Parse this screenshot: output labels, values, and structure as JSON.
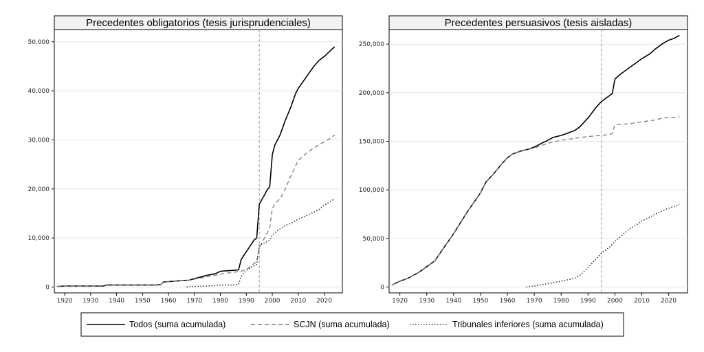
{
  "chart_data": [
    {
      "type": "line",
      "title": "Precedentes obligatorios (tesis jurisprudenciales)",
      "xlabel": "",
      "ylabel": "",
      "xlim": [
        1916,
        2027
      ],
      "ylim": [
        -1200,
        52500
      ],
      "xticks": [
        1920,
        1930,
        1940,
        1950,
        1960,
        1970,
        1980,
        1990,
        2000,
        2010,
        2020
      ],
      "yticks": [
        0,
        10000,
        20000,
        30000,
        40000,
        50000
      ],
      "ytick_labels": [
        "0",
        "10,000",
        "20,000",
        "30,000",
        "40,000",
        "50,000"
      ],
      "reference_line_x": 1995,
      "grid": "horizontal",
      "series": [
        {
          "name": "Todos (suma acumulada)",
          "x": [
            1917,
            1920,
            1925,
            1930,
            1935,
            1936,
            1940,
            1945,
            1950,
            1955,
            1957,
            1958,
            1960,
            1965,
            1968,
            1970,
            1975,
            1978,
            1980,
            1985,
            1987,
            1988,
            1990,
            1992,
            1993,
            1994,
            1995,
            1997,
            1998,
            1999,
            2000,
            2001,
            2003,
            2005,
            2007,
            2008,
            2009,
            2010,
            2012,
            2014,
            2016,
            2018,
            2020,
            2022,
            2024
          ],
          "y": [
            100,
            200,
            200,
            200,
            200,
            400,
            400,
            400,
            400,
            400,
            500,
            1000,
            1100,
            1300,
            1400,
            1700,
            2400,
            2700,
            3200,
            3400,
            3500,
            5600,
            7200,
            8800,
            9600,
            10000,
            16900,
            18800,
            19800,
            20400,
            27000,
            29000,
            31000,
            34000,
            36500,
            38000,
            39500,
            40500,
            42000,
            43500,
            45000,
            46200,
            47000,
            48000,
            49000
          ]
        },
        {
          "name": "SCJN (suma acumulada)",
          "x": [
            1917,
            1920,
            1930,
            1940,
            1950,
            1955,
            1957,
            1958,
            1960,
            1965,
            1968,
            1970,
            1975,
            1980,
            1985,
            1988,
            1990,
            1992,
            1994,
            1995,
            1997,
            1999,
            2000,
            2001,
            2003,
            2005,
            2007,
            2010,
            2013,
            2015,
            2018,
            2020,
            2022,
            2024
          ],
          "y": [
            100,
            200,
            200,
            400,
            400,
            400,
            500,
            1000,
            1100,
            1300,
            1400,
            1600,
            2100,
            2600,
            3000,
            3200,
            3600,
            4400,
            5200,
            8000,
            10000,
            12000,
            16000,
            17000,
            18000,
            20000,
            22500,
            25800,
            27200,
            28000,
            29000,
            29600,
            30200,
            31000
          ]
        },
        {
          "name": "Tribunales inferiores (suma acumulada)",
          "x": [
            1967,
            1970,
            1975,
            1980,
            1985,
            1987,
            1988,
            1990,
            1992,
            1994,
            1995,
            1997,
            1999,
            2000,
            2002,
            2005,
            2008,
            2010,
            2012,
            2015,
            2018,
            2020,
            2022,
            2024
          ],
          "y": [
            0,
            100,
            200,
            400,
            400,
            500,
            2200,
            3400,
            4100,
            4600,
            8500,
            9000,
            9500,
            10600,
            11500,
            12500,
            13200,
            13800,
            14300,
            15000,
            15800,
            16700,
            17300,
            18000
          ]
        }
      ]
    },
    {
      "type": "line",
      "title": "Precedentes persuasivos (tesis aisladas)",
      "xlabel": "",
      "ylabel": "",
      "xlim": [
        1916,
        2027
      ],
      "ylim": [
        -6000,
        265000
      ],
      "xticks": [
        1920,
        1930,
        1940,
        1950,
        1960,
        1970,
        1980,
        1990,
        2000,
        2010,
        2020
      ],
      "yticks": [
        0,
        50000,
        100000,
        150000,
        200000,
        250000
      ],
      "ytick_labels": [
        "0",
        "50,000",
        "100,000",
        "150,000",
        "200,000",
        "250,000"
      ],
      "reference_line_x": 1995,
      "grid": "horizontal",
      "series": [
        {
          "name": "Todos (suma acumulada)",
          "x": [
            1917,
            1920,
            1923,
            1925,
            1927,
            1930,
            1933,
            1935,
            1940,
            1945,
            1950,
            1952,
            1955,
            1958,
            1960,
            1962,
            1965,
            1968,
            1970,
            1972,
            1975,
            1977,
            1980,
            1983,
            1985,
            1987,
            1990,
            1993,
            1995,
            1997,
            1999,
            2000,
            2002,
            2005,
            2007,
            2010,
            2013,
            2015,
            2018,
            2020,
            2022,
            2024
          ],
          "y": [
            2000,
            6000,
            9000,
            12000,
            15000,
            21000,
            27000,
            35000,
            55000,
            77000,
            97000,
            108000,
            117000,
            127000,
            133000,
            137000,
            140000,
            142000,
            144000,
            147000,
            151000,
            154000,
            156000,
            159000,
            161000,
            165000,
            174000,
            185000,
            191000,
            195000,
            199000,
            214000,
            219000,
            225000,
            229000,
            235000,
            240000,
            245000,
            251000,
            254000,
            256000,
            259000
          ]
        },
        {
          "name": "SCJN (suma acumulada)",
          "x": [
            1917,
            1920,
            1923,
            1925,
            1927,
            1930,
            1933,
            1935,
            1940,
            1945,
            1950,
            1952,
            1955,
            1958,
            1960,
            1962,
            1965,
            1968,
            1970,
            1972,
            1975,
            1980,
            1985,
            1990,
            1995,
            1998,
            1999,
            2000,
            2005,
            2010,
            2015,
            2018,
            2020,
            2024
          ],
          "y": [
            2000,
            6000,
            9000,
            12000,
            15000,
            21000,
            27000,
            35000,
            55000,
            77000,
            97000,
            108000,
            117000,
            127000,
            133000,
            137000,
            140000,
            142000,
            143000,
            145000,
            148000,
            151000,
            153000,
            155000,
            156000,
            157000,
            158000,
            167000,
            168000,
            170000,
            172000,
            174000,
            174500,
            175000
          ]
        },
        {
          "name": "Tribunales inferiores (suma acumulada)",
          "x": [
            1967,
            1970,
            1975,
            1980,
            1985,
            1987,
            1990,
            1993,
            1995,
            1998,
            2000,
            2003,
            2005,
            2008,
            2010,
            2013,
            2015,
            2018,
            2020,
            2022,
            2024
          ],
          "y": [
            0,
            1000,
            3500,
            6000,
            9000,
            12000,
            20000,
            29000,
            35000,
            41000,
            47000,
            54000,
            59000,
            64000,
            68000,
            72000,
            75000,
            79000,
            81000,
            83000,
            85000
          ]
        }
      ]
    }
  ],
  "legend": {
    "items": [
      {
        "label": "Todos (suma acumulada)",
        "style": "solid",
        "color": "#000000"
      },
      {
        "label": "SCJN (suma acumulada)",
        "style": "dashed",
        "color": "#7a7a7a"
      },
      {
        "label": "Tribunales inferiores (suma acumulada)",
        "style": "dotted",
        "color": "#333333"
      }
    ]
  },
  "colors": {
    "todos": "#000000",
    "scjn": "#7a7a7a",
    "tribunales": "#333333",
    "reference_line": "#9a9a9a",
    "grid": "#e4e4e4",
    "title_band": "#f2f2f2"
  }
}
